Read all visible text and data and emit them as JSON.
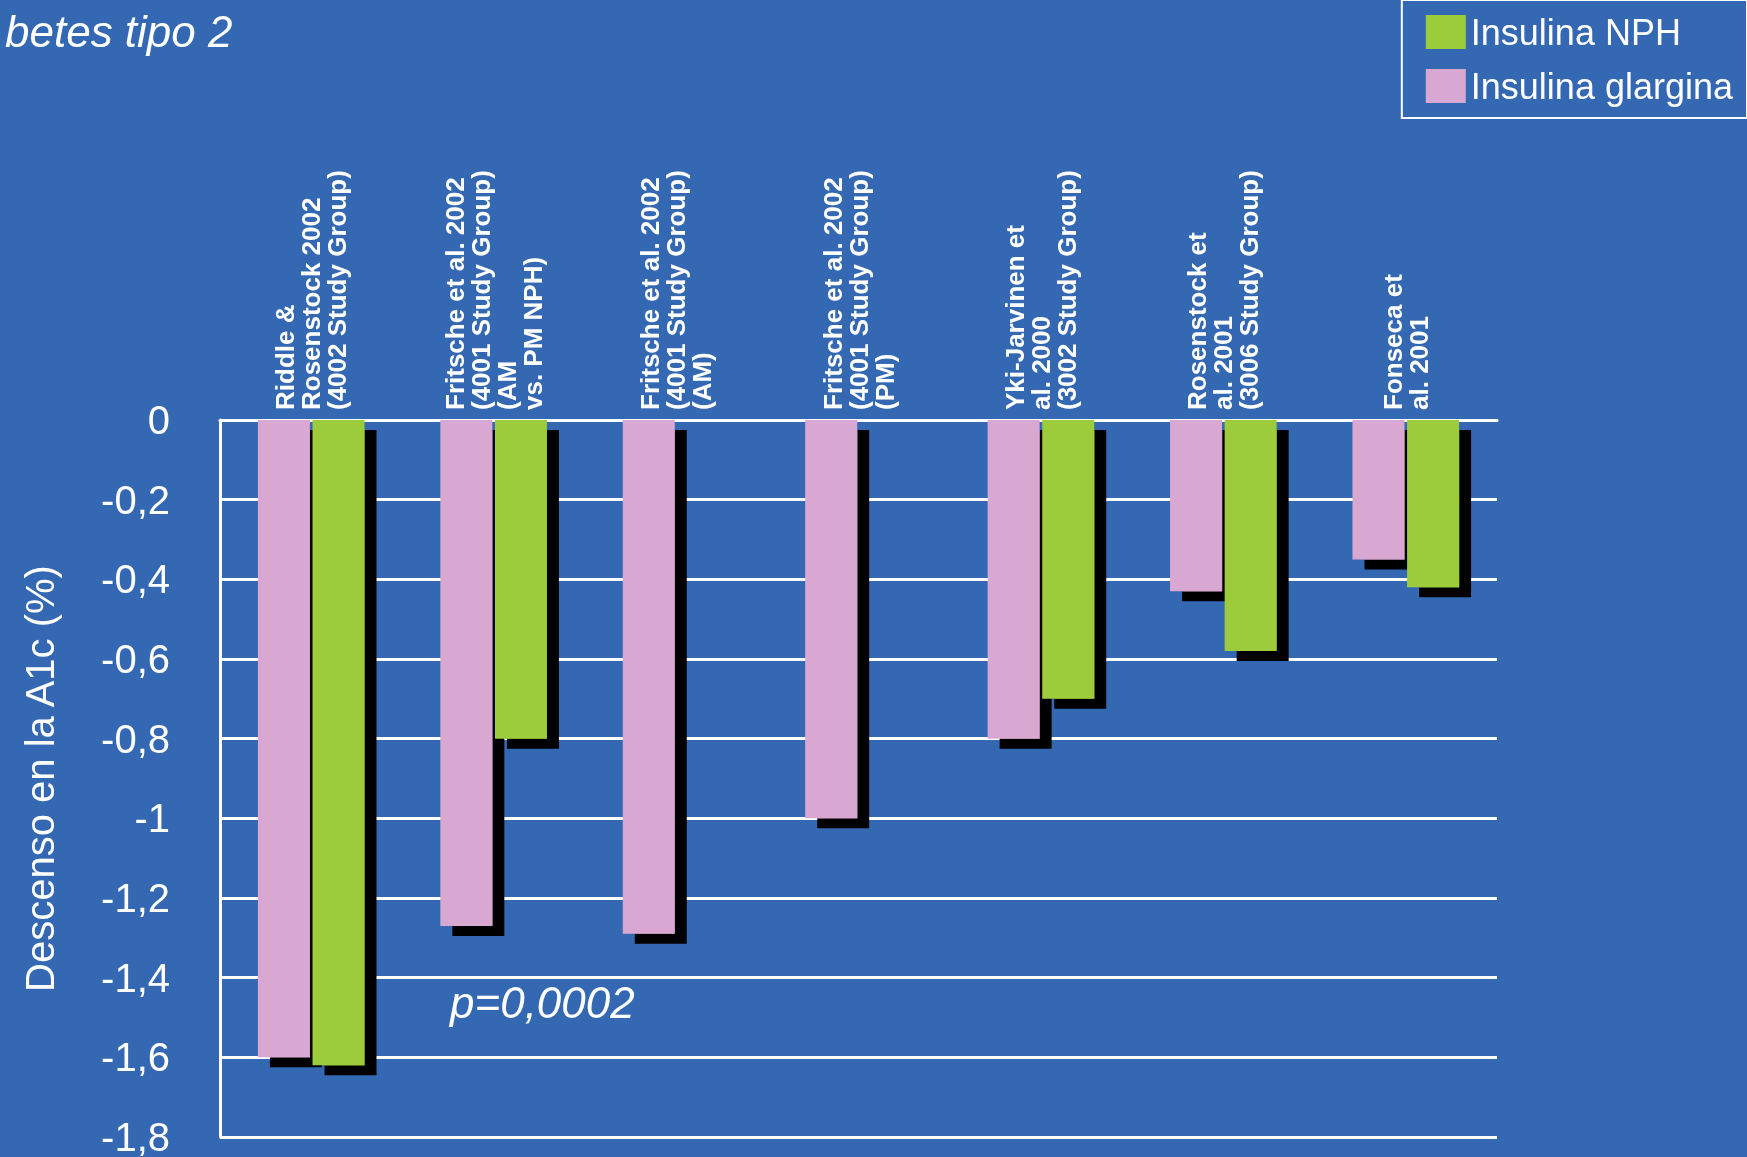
{
  "chart_data": {
    "type": "bar",
    "title": "betes tipo 2",
    "ylabel": "Descenso en la A1c (%)",
    "categories": [
      "Riddle &\nRosenstock 2002\n(4002 Study Group)",
      "Fritsche et al. 2002\n(4001 Study Group)\n(AM\nvs. PM NPH)",
      "Fritsche et al. 2002\n(4001 Study Group)\n(AM)",
      "Fritsche et al. 2002\n(4001 Study Group)\n(PM)",
      "Yki-Jarvinen et\nal. 2000\n(3002 Study Group)",
      "Rosenstock et\nal. 2001\n(3006 Study Group)",
      "Fonseca et\nal. 2001"
    ],
    "series": [
      {
        "name": "Insulina glargina",
        "color": "#d8a8d2",
        "values": [
          -1.6,
          -1.27,
          -1.29,
          -1.0,
          -0.8,
          -0.43,
          -0.35
        ]
      },
      {
        "name": "Insulina NPH",
        "color": "#9ccc3a",
        "values": [
          -1.62,
          -0.8,
          null,
          null,
          -0.7,
          -0.58,
          -0.42
        ]
      }
    ],
    "ylim": [
      -1.8,
      0
    ],
    "yticks": [
      {
        "value": -1.8,
        "label": "-1,8"
      },
      {
        "value": -1.6,
        "label": "-1,6"
      },
      {
        "value": -1.4,
        "label": "-1,4"
      },
      {
        "value": -1.2,
        "label": "-1,2"
      },
      {
        "value": -1,
        "label": "-1"
      },
      {
        "value": -0.8,
        "label": "-0,8"
      },
      {
        "value": -0.6,
        "label": "-0,6"
      },
      {
        "value": -0.4,
        "label": "-0,4"
      },
      {
        "value": -0.2,
        "label": "-0,2"
      },
      {
        "value": 0,
        "label": "0"
      }
    ],
    "grid": "y",
    "legend": "top right",
    "annotations": [
      "p=0,0002"
    ]
  }
}
